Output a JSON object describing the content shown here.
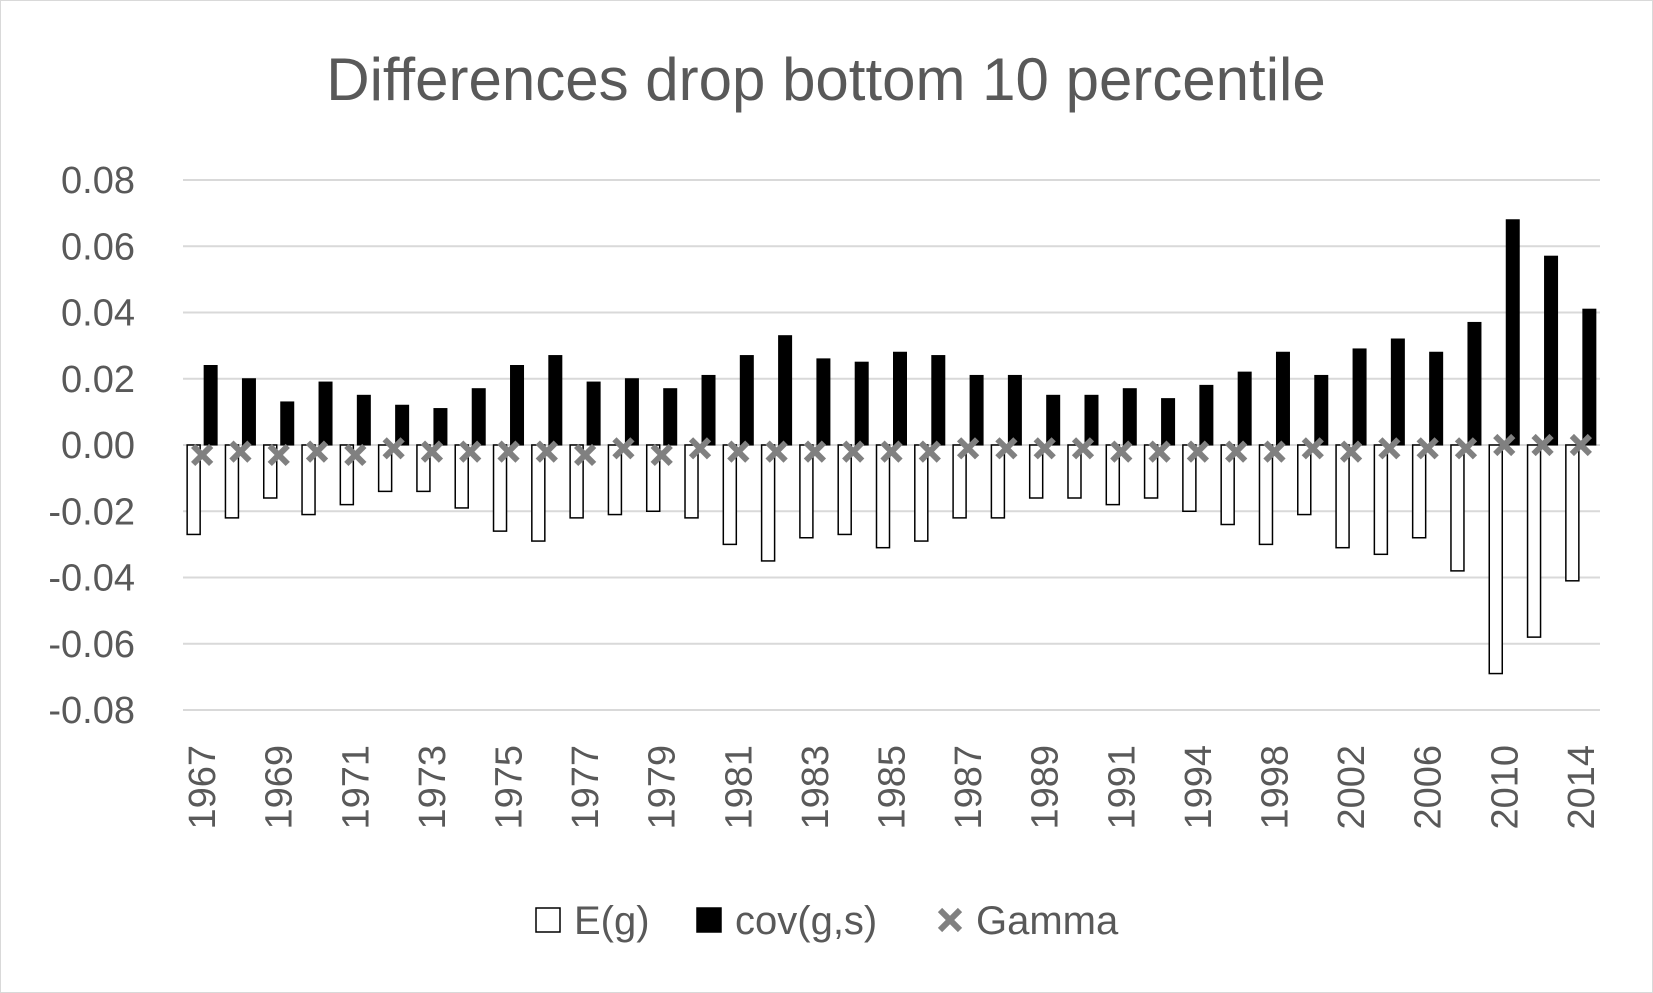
{
  "chart_data": {
    "type": "bar",
    "title": "Differences drop bottom 10 percentile",
    "xlabel": "",
    "ylabel": "",
    "ylim": [
      -0.08,
      0.08
    ],
    "yticks": [
      "0.08",
      "0.06",
      "0.04",
      "0.02",
      "0.00",
      "-0.02",
      "-0.04",
      "-0.06",
      "-0.08"
    ],
    "grid": true,
    "legend_position": "bottom",
    "categories": [
      "1967",
      "1968",
      "1969",
      "1970",
      "1971",
      "1972",
      "1973",
      "1974",
      "1975",
      "1976",
      "1977",
      "1978",
      "1979",
      "1980",
      "1981",
      "1982",
      "1983",
      "1984",
      "1985",
      "1986",
      "1987",
      "1988",
      "1989",
      "1990",
      "1991",
      "1992",
      "1994",
      "1996",
      "1998",
      "2000",
      "2002",
      "2004",
      "2006",
      "2008",
      "2010",
      "2012",
      "2014"
    ],
    "x_tick_labels": [
      "1967",
      "",
      "1969",
      "",
      "1971",
      "",
      "1973",
      "",
      "1975",
      "",
      "1977",
      "",
      "1979",
      "",
      "1981",
      "",
      "1983",
      "",
      "1985",
      "",
      "1987",
      "",
      "1989",
      "",
      "1991",
      "",
      "1994",
      "",
      "1998",
      "",
      "2002",
      "",
      "2006",
      "",
      "2010",
      "",
      "2014"
    ],
    "series": [
      {
        "name": "E(g)",
        "kind": "bar",
        "color": "#ffffff",
        "stroke": "#000000",
        "values": [
          -0.027,
          -0.022,
          -0.016,
          -0.021,
          -0.018,
          -0.014,
          -0.014,
          -0.019,
          -0.026,
          -0.029,
          -0.022,
          -0.021,
          -0.02,
          -0.022,
          -0.03,
          -0.035,
          -0.028,
          -0.027,
          -0.031,
          -0.029,
          -0.022,
          -0.022,
          -0.016,
          -0.016,
          -0.018,
          -0.016,
          -0.02,
          -0.024,
          -0.03,
          -0.021,
          -0.031,
          -0.033,
          -0.028,
          -0.038,
          -0.069,
          -0.058,
          -0.041
        ]
      },
      {
        "name": "cov(g,s)",
        "kind": "bar",
        "color": "#000000",
        "stroke": "#000000",
        "values": [
          0.024,
          0.02,
          0.013,
          0.019,
          0.015,
          0.012,
          0.011,
          0.017,
          0.024,
          0.027,
          0.019,
          0.02,
          0.017,
          0.021,
          0.027,
          0.033,
          0.026,
          0.025,
          0.028,
          0.027,
          0.021,
          0.021,
          0.015,
          0.015,
          0.017,
          0.014,
          0.018,
          0.022,
          0.028,
          0.021,
          0.029,
          0.032,
          0.028,
          0.037,
          0.068,
          0.057,
          0.041
        ]
      },
      {
        "name": "Gamma",
        "kind": "marker",
        "color": "#808080",
        "values": [
          -0.003,
          -0.002,
          -0.003,
          -0.002,
          -0.003,
          -0.001,
          -0.002,
          -0.002,
          -0.002,
          -0.002,
          -0.003,
          -0.001,
          -0.003,
          -0.001,
          -0.002,
          -0.002,
          -0.002,
          -0.002,
          -0.002,
          -0.002,
          -0.001,
          -0.001,
          -0.001,
          -0.001,
          -0.002,
          -0.002,
          -0.002,
          -0.002,
          -0.002,
          -0.001,
          -0.002,
          -0.001,
          -0.001,
          -0.001,
          0.0,
          0.0,
          0.0
        ]
      }
    ]
  }
}
